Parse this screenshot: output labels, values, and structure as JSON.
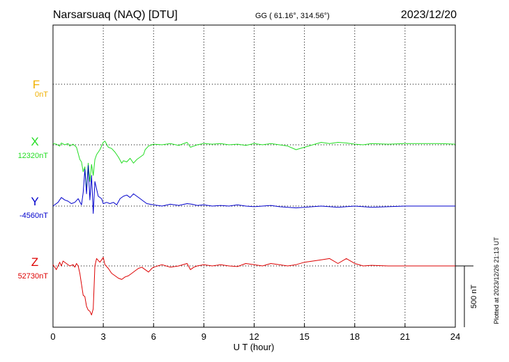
{
  "header": {
    "station": "Narsarsuaq (NAQ)  [DTU]",
    "coords": "GG ( 61.16°, 314.56°)",
    "date": "2023/12/20"
  },
  "side_note": "Plotted at 2023/12/26 21:13 UT",
  "chart_data": {
    "type": "line",
    "xlabel": "U T (hour)",
    "xlim": [
      0,
      24
    ],
    "xticks": [
      "0",
      "3",
      "6",
      "9",
      "12",
      "15",
      "18",
      "21",
      "24"
    ],
    "scale_bar": {
      "label": "500 nT",
      "nT": 500
    },
    "colors": {
      "F": "#f0b000",
      "X": "#22dd22",
      "Y": "#0000cc",
      "Z": "#dd0000"
    },
    "series": [
      {
        "name": "F",
        "label": "F",
        "baseline": "0nT",
        "x": [],
        "y": []
      },
      {
        "name": "X",
        "label": "X",
        "baseline": "12320nT",
        "x": [
          0,
          0.2,
          0.4,
          0.5,
          0.7,
          0.9,
          1.0,
          1.2,
          1.4,
          1.6,
          1.7,
          1.8,
          1.9,
          2.0,
          2.1,
          2.2,
          2.3,
          2.4,
          2.5,
          2.6,
          2.8,
          3.0,
          3.1,
          3.3,
          3.5,
          3.7,
          3.9,
          4.1,
          4.2,
          4.4,
          4.6,
          4.8,
          5.0,
          5.2,
          5.4,
          5.5,
          5.7,
          5.9,
          6.0,
          6.5,
          7.0,
          7.5,
          8.0,
          8.2,
          8.4,
          8.6,
          9.0,
          9.5,
          10.0,
          10.5,
          11.0,
          11.5,
          12.0,
          12.5,
          13.0,
          13.5,
          14.0,
          14.5,
          15.0,
          15.5,
          16.0,
          16.5,
          17.0,
          17.5,
          18.0,
          18.5,
          19.0,
          20.0,
          21.0,
          22.0,
          23.0,
          24.0
        ],
        "y": [
          10,
          5,
          -10,
          15,
          0,
          10,
          -10,
          5,
          -20,
          -120,
          -140,
          -220,
          -180,
          -380,
          -150,
          -300,
          -160,
          -250,
          -120,
          -80,
          -40,
          20,
          30,
          -20,
          -30,
          -60,
          -100,
          -150,
          -130,
          -140,
          -110,
          -150,
          -120,
          -100,
          -80,
          -40,
          -10,
          0,
          5,
          0,
          10,
          -5,
          20,
          -20,
          -10,
          0,
          10,
          5,
          10,
          0,
          5,
          -5,
          10,
          0,
          10,
          0,
          -10,
          -40,
          -20,
          0,
          20,
          10,
          20,
          15,
          5,
          0,
          10,
          5,
          10,
          10,
          10,
          5
        ]
      },
      {
        "name": "Y",
        "label": "Y",
        "baseline": "-4560nT",
        "x": [
          0,
          0.3,
          0.5,
          0.7,
          0.9,
          1.1,
          1.3,
          1.5,
          1.7,
          1.8,
          1.9,
          2.0,
          2.1,
          2.2,
          2.3,
          2.4,
          2.5,
          2.7,
          2.9,
          3.0,
          3.2,
          3.4,
          3.6,
          3.8,
          4.0,
          4.2,
          4.4,
          4.6,
          4.8,
          5.0,
          5.2,
          5.4,
          5.6,
          5.8,
          6.0,
          6.5,
          7.0,
          7.5,
          8.0,
          8.3,
          8.6,
          9.0,
          9.5,
          10.0,
          10.5,
          11.0,
          11.5,
          12.0,
          12.5,
          13.0,
          13.5,
          14.0,
          14.5,
          15.0,
          15.5,
          16.0,
          16.5,
          17.0,
          17.5,
          18.0,
          18.5,
          19.0,
          20.0,
          21.0,
          22.0,
          23.0,
          24.0
        ],
        "y": [
          0,
          30,
          70,
          50,
          40,
          20,
          30,
          60,
          10,
          110,
          300,
          100,
          330,
          50,
          250,
          -60,
          200,
          80,
          60,
          20,
          30,
          20,
          30,
          10,
          60,
          80,
          90,
          70,
          100,
          80,
          60,
          40,
          20,
          15,
          10,
          0,
          15,
          5,
          20,
          15,
          5,
          10,
          0,
          5,
          0,
          10,
          0,
          -5,
          0,
          5,
          -5,
          -10,
          -15,
          -10,
          -5,
          0,
          -5,
          -10,
          -5,
          0,
          -5,
          -10,
          -5,
          0,
          0,
          0,
          0
        ]
      },
      {
        "name": "Z",
        "label": "Z",
        "baseline": "52730nT",
        "x": [
          0,
          0.2,
          0.4,
          0.5,
          0.6,
          0.8,
          1.0,
          1.2,
          1.3,
          1.4,
          1.5,
          1.6,
          1.7,
          1.8,
          1.9,
          2.0,
          2.1,
          2.2,
          2.3,
          2.4,
          2.5,
          2.6,
          2.8,
          3.0,
          3.1,
          3.3,
          3.5,
          3.7,
          3.9,
          4.1,
          4.3,
          4.5,
          4.7,
          4.9,
          5.1,
          5.3,
          5.5,
          5.7,
          5.9,
          6.0,
          6.5,
          7.0,
          7.5,
          8.0,
          8.2,
          8.4,
          8.6,
          9.0,
          9.5,
          10.0,
          10.5,
          11.0,
          11.5,
          12.0,
          12.5,
          13.0,
          13.5,
          14.0,
          14.5,
          15.0,
          15.5,
          16.0,
          16.5,
          17.0,
          17.5,
          18.0,
          18.5,
          19.0,
          20.0,
          21.0,
          22.0,
          23.0,
          24.0
        ],
        "y": [
          10,
          -30,
          30,
          0,
          40,
          20,
          0,
          10,
          -10,
          20,
          0,
          -60,
          -150,
          -240,
          -250,
          -330,
          -360,
          -370,
          -400,
          -350,
          0,
          60,
          30,
          70,
          10,
          -20,
          -60,
          -80,
          -100,
          -110,
          -90,
          -80,
          -60,
          -40,
          -20,
          -10,
          -30,
          -50,
          -20,
          -10,
          10,
          -10,
          0,
          20,
          -30,
          -10,
          0,
          10,
          0,
          10,
          0,
          -5,
          20,
          10,
          0,
          20,
          10,
          0,
          10,
          30,
          40,
          50,
          60,
          20,
          60,
          20,
          0,
          5,
          0,
          0,
          0,
          0,
          0
        ]
      }
    ]
  }
}
